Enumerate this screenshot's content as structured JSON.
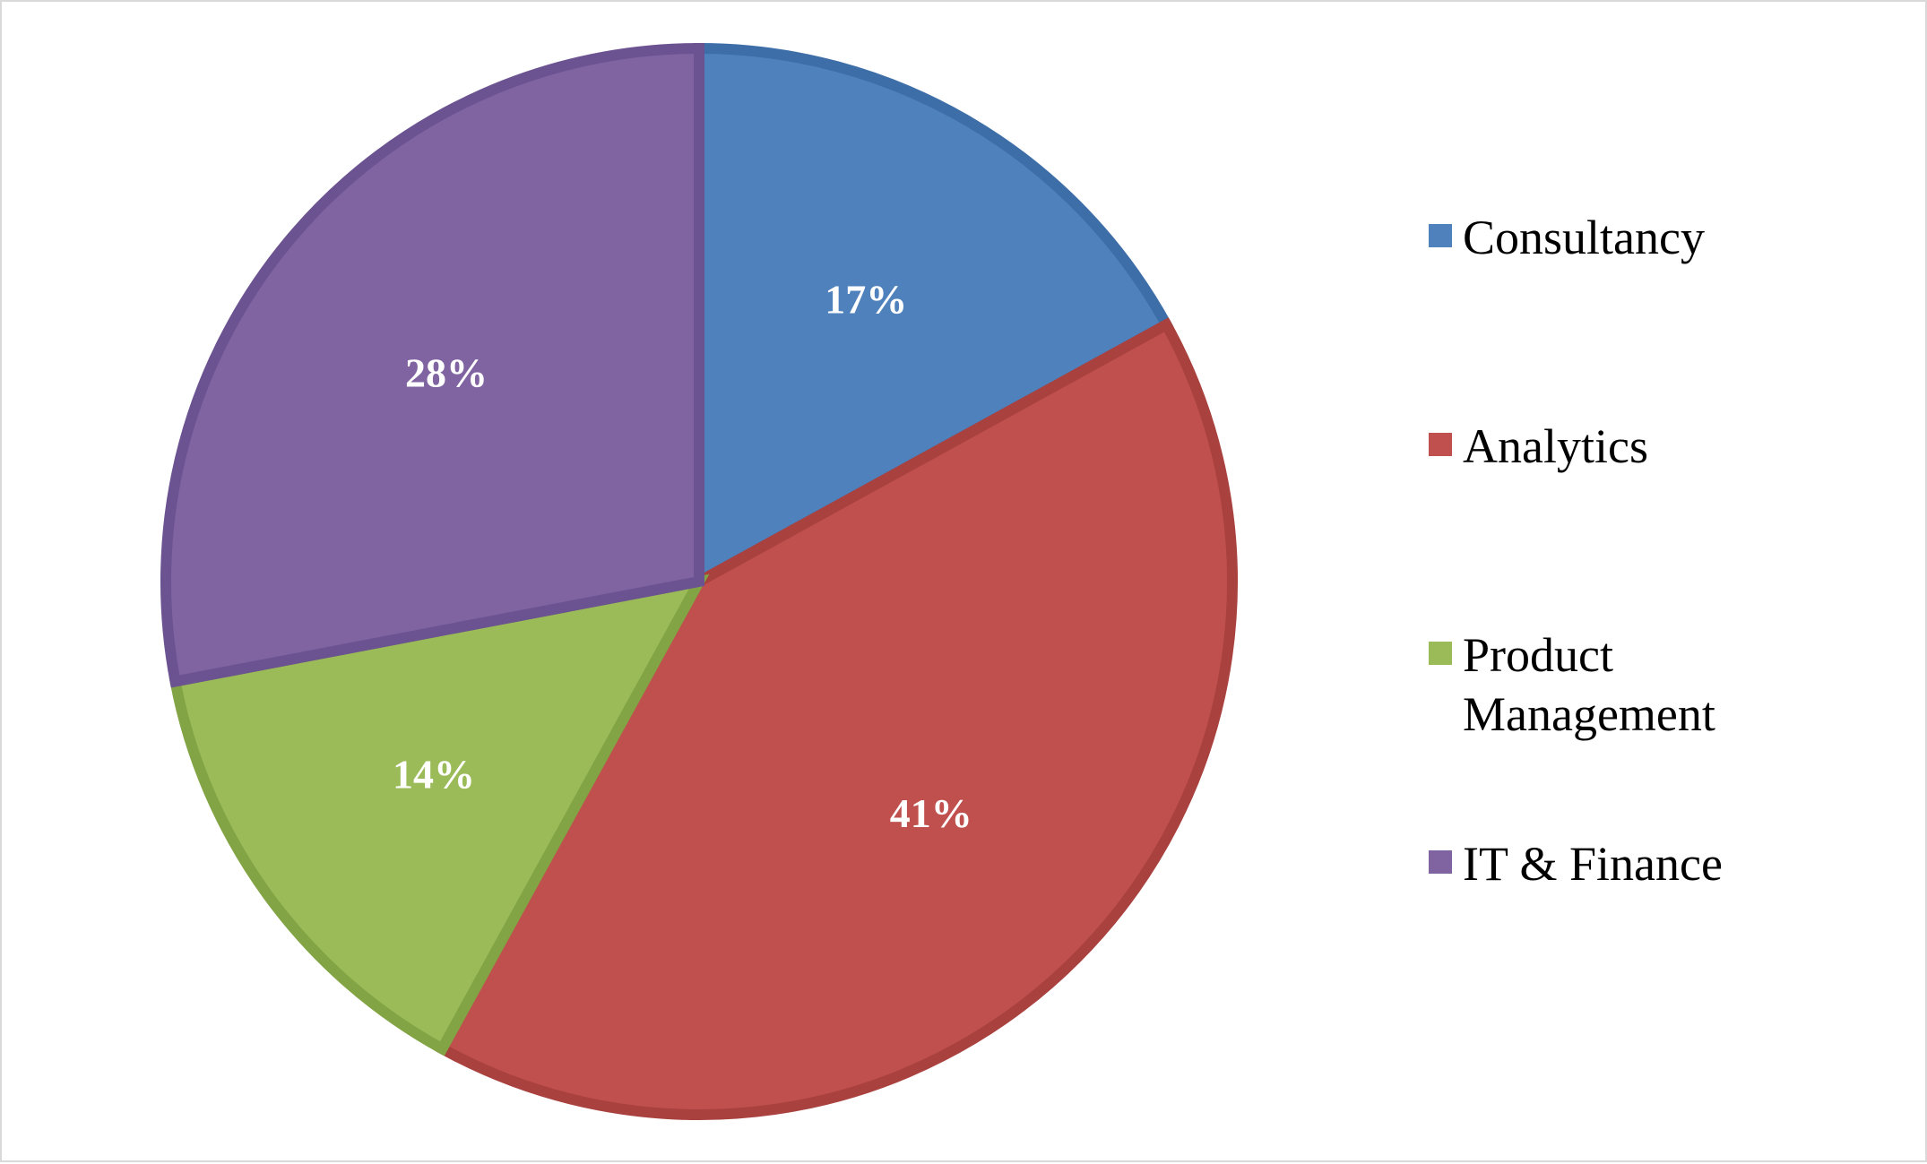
{
  "chart_data": {
    "type": "pie",
    "title": "",
    "categories": [
      "Consultancy",
      "Analytics",
      "Product Management",
      "IT & Finance"
    ],
    "values": [
      17,
      41,
      14,
      28
    ],
    "value_labels": [
      "17%",
      "41%",
      "14%",
      "28%"
    ],
    "unit": "%",
    "colors": [
      "#4f81bd",
      "#c0504d",
      "#9bbb59",
      "#8064a2"
    ],
    "border_colors": [
      "#3d6ea8",
      "#a9413e",
      "#83a444",
      "#6b5290"
    ],
    "start_angle_deg": 0,
    "direction": "clockwise",
    "legend_position": "right",
    "data_label_color": "#ffffff"
  }
}
